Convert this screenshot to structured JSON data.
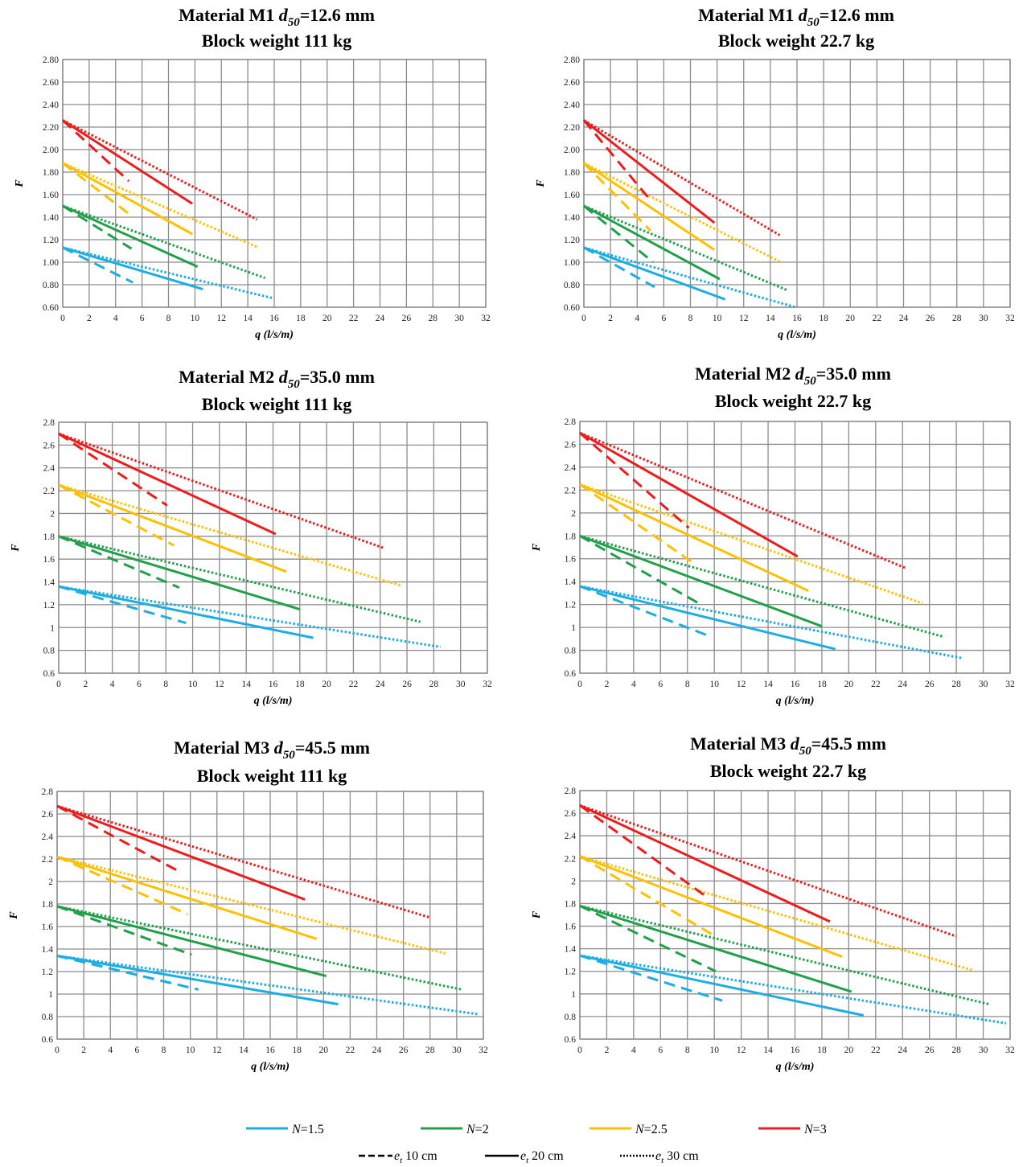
{
  "figure": {
    "legend_series": [
      {
        "label_var": "N",
        "label_val": "=1.5",
        "color": "#1CADE4"
      },
      {
        "label_var": "N",
        "label_val": "=2",
        "color": "#21A04A"
      },
      {
        "label_var": "N",
        "label_val": "=2.5",
        "color": "#FFC000"
      },
      {
        "label_var": "N",
        "label_val": "=3",
        "color": "#EE1C1C"
      }
    ],
    "legend_styles": [
      {
        "label_var": "e",
        "label_sub": "t",
        "label_val": " 10 cm",
        "dash": "dashed"
      },
      {
        "label_var": "e",
        "label_sub": "t",
        "label_val": " 20 cm",
        "dash": "solid"
      },
      {
        "label_var": "e",
        "label_sub": "t",
        "label_val": " 30 cm",
        "dash": "dotted"
      }
    ]
  },
  "chart_data": [
    {
      "type": "line",
      "title_line1": [
        "Material M1 ",
        "d",
        "50",
        "=12.6 mm"
      ],
      "title_line2": "Block weight  111 kg",
      "xlabel": "q (l/s/m)",
      "ylabel": "F",
      "xlim": [
        0,
        32
      ],
      "ylim": [
        0.6,
        2.8
      ],
      "y_decimals": 2,
      "x_ticks": [
        "0",
        "2",
        "4",
        "6",
        "8",
        "10",
        "12",
        "14",
        "16",
        "18",
        "20",
        "22",
        "24",
        "26",
        "28",
        "30",
        "32"
      ],
      "y_ticks": [
        "0.60",
        "0.80",
        "1.00",
        "1.20",
        "1.40",
        "1.60",
        "1.80",
        "2.00",
        "2.20",
        "2.40",
        "2.60",
        "2.80"
      ],
      "grid": true,
      "series": [
        {
          "N": 1.5,
          "e_t": 10,
          "x": [
            0,
            5.3
          ],
          "y": [
            1.13,
            0.82
          ]
        },
        {
          "N": 1.5,
          "e_t": 20,
          "x": [
            0,
            10.6
          ],
          "y": [
            1.13,
            0.76
          ]
        },
        {
          "N": 1.5,
          "e_t": 30,
          "x": [
            0,
            15.9
          ],
          "y": [
            1.13,
            0.68
          ]
        },
        {
          "N": 2,
          "e_t": 10,
          "x": [
            0,
            5.2
          ],
          "y": [
            1.5,
            1.12
          ]
        },
        {
          "N": 2,
          "e_t": 20,
          "x": [
            0,
            10.2
          ],
          "y": [
            1.5,
            0.96
          ]
        },
        {
          "N": 2,
          "e_t": 30,
          "x": [
            0,
            15.3
          ],
          "y": [
            1.5,
            0.86
          ]
        },
        {
          "N": 2.5,
          "e_t": 10,
          "x": [
            0,
            5.0
          ],
          "y": [
            1.88,
            1.43
          ]
        },
        {
          "N": 2.5,
          "e_t": 20,
          "x": [
            0,
            9.8
          ],
          "y": [
            1.88,
            1.25
          ]
        },
        {
          "N": 2.5,
          "e_t": 30,
          "x": [
            0,
            14.8
          ],
          "y": [
            1.88,
            1.13
          ]
        },
        {
          "N": 3,
          "e_t": 10,
          "x": [
            0,
            5.0
          ],
          "y": [
            2.26,
            1.72
          ]
        },
        {
          "N": 3,
          "e_t": 20,
          "x": [
            0,
            9.8
          ],
          "y": [
            2.26,
            1.52
          ]
        },
        {
          "N": 3,
          "e_t": 30,
          "x": [
            0,
            14.7
          ],
          "y": [
            2.26,
            1.38
          ]
        }
      ]
    },
    {
      "type": "line",
      "title_line1": [
        "Material M1 ",
        "d",
        "50",
        "=12.6 mm"
      ],
      "title_line2": "Block weight  22.7 kg",
      "xlabel": "q (l/s/m)",
      "ylabel": "F",
      "xlim": [
        0,
        32
      ],
      "ylim": [
        0.6,
        2.8
      ],
      "y_decimals": 2,
      "x_ticks": [
        "0",
        "2",
        "4",
        "6",
        "8",
        "10",
        "12",
        "14",
        "16",
        "18",
        "20",
        "22",
        "24",
        "26",
        "28",
        "30",
        "32"
      ],
      "y_ticks": [
        "0.60",
        "0.80",
        "1.00",
        "1.20",
        "1.40",
        "1.60",
        "1.80",
        "2.00",
        "2.20",
        "2.40",
        "2.60",
        "2.80"
      ],
      "grid": true,
      "series": [
        {
          "N": 1.5,
          "e_t": 10,
          "x": [
            0,
            5.3
          ],
          "y": [
            1.13,
            0.78
          ]
        },
        {
          "N": 1.5,
          "e_t": 20,
          "x": [
            0,
            10.6
          ],
          "y": [
            1.13,
            0.67
          ]
        },
        {
          "N": 1.5,
          "e_t": 30,
          "x": [
            0,
            15.9
          ],
          "y": [
            1.13,
            0.6
          ]
        },
        {
          "N": 2,
          "e_t": 10,
          "x": [
            0,
            5.2
          ],
          "y": [
            1.5,
            1.0
          ]
        },
        {
          "N": 2,
          "e_t": 20,
          "x": [
            0,
            10.2
          ],
          "y": [
            1.5,
            0.85
          ]
        },
        {
          "N": 2,
          "e_t": 30,
          "x": [
            0,
            15.3
          ],
          "y": [
            1.5,
            0.75
          ]
        },
        {
          "N": 2.5,
          "e_t": 10,
          "x": [
            0,
            5.0
          ],
          "y": [
            1.88,
            1.28
          ]
        },
        {
          "N": 2.5,
          "e_t": 20,
          "x": [
            0,
            9.8
          ],
          "y": [
            1.88,
            1.11
          ]
        },
        {
          "N": 2.5,
          "e_t": 30,
          "x": [
            0,
            14.8
          ],
          "y": [
            1.88,
            1.0
          ]
        },
        {
          "N": 3,
          "e_t": 10,
          "x": [
            0,
            5.0
          ],
          "y": [
            2.26,
            1.55
          ]
        },
        {
          "N": 3,
          "e_t": 20,
          "x": [
            0,
            9.8
          ],
          "y": [
            2.26,
            1.35
          ]
        },
        {
          "N": 3,
          "e_t": 30,
          "x": [
            0,
            14.7
          ],
          "y": [
            2.26,
            1.24
          ]
        }
      ]
    },
    {
      "type": "line",
      "title_line1": [
        "Material M2 ",
        "d",
        "50",
        "=35.0 mm"
      ],
      "title_line2": "Block weight  111 kg",
      "xlabel": "q (l/s/m)",
      "ylabel": "F",
      "xlim": [
        0,
        32
      ],
      "ylim": [
        0.6,
        2.8
      ],
      "y_decimals": 1,
      "x_ticks": [
        "0",
        "2",
        "4",
        "6",
        "8",
        "10",
        "12",
        "14",
        "16",
        "18",
        "20",
        "22",
        "24",
        "26",
        "28",
        "30",
        "32"
      ],
      "y_ticks": [
        "0.6",
        "0.8",
        "1",
        "1.2",
        "1.4",
        "1.6",
        "1.8",
        "2",
        "2.2",
        "2.4",
        "2.6",
        "2.8"
      ],
      "grid": true,
      "series": [
        {
          "N": 1.5,
          "e_t": 10,
          "x": [
            0,
            9.5
          ],
          "y": [
            1.36,
            1.04
          ]
        },
        {
          "N": 1.5,
          "e_t": 20,
          "x": [
            0,
            19.0
          ],
          "y": [
            1.36,
            0.91
          ]
        },
        {
          "N": 1.5,
          "e_t": 30,
          "x": [
            0,
            28.5
          ],
          "y": [
            1.36,
            0.83
          ]
        },
        {
          "N": 2,
          "e_t": 10,
          "x": [
            0,
            9.0
          ],
          "y": [
            1.8,
            1.35
          ]
        },
        {
          "N": 2,
          "e_t": 20,
          "x": [
            0,
            18.0
          ],
          "y": [
            1.8,
            1.16
          ]
        },
        {
          "N": 2,
          "e_t": 30,
          "x": [
            0,
            27.0
          ],
          "y": [
            1.8,
            1.05
          ]
        },
        {
          "N": 2.5,
          "e_t": 10,
          "x": [
            0,
            8.6
          ],
          "y": [
            2.25,
            1.72
          ]
        },
        {
          "N": 2.5,
          "e_t": 20,
          "x": [
            0,
            17.0
          ],
          "y": [
            2.25,
            1.49
          ]
        },
        {
          "N": 2.5,
          "e_t": 30,
          "x": [
            0,
            25.5
          ],
          "y": [
            2.25,
            1.37
          ]
        },
        {
          "N": 3,
          "e_t": 10,
          "x": [
            0,
            8.1
          ],
          "y": [
            2.7,
            2.07
          ]
        },
        {
          "N": 3,
          "e_t": 20,
          "x": [
            0,
            16.2
          ],
          "y": [
            2.7,
            1.82
          ]
        },
        {
          "N": 3,
          "e_t": 30,
          "x": [
            0,
            24.2
          ],
          "y": [
            2.7,
            1.7
          ]
        }
      ]
    },
    {
      "type": "line",
      "title_line1": [
        "Material M2 ",
        "d",
        "50",
        "=35.0 mm"
      ],
      "title_line2": "Block weight  22.7 kg",
      "xlabel": "q (l/s/m)",
      "ylabel": "F",
      "xlim": [
        0,
        32
      ],
      "ylim": [
        0.6,
        2.8
      ],
      "y_decimals": 1,
      "x_ticks": [
        "0",
        "2",
        "4",
        "6",
        "8",
        "10",
        "12",
        "14",
        "16",
        "18",
        "20",
        "22",
        "24",
        "26",
        "28",
        "30",
        "32"
      ],
      "y_ticks": [
        "0.6",
        "0.8",
        "1",
        "1.2",
        "1.4",
        "1.6",
        "1.8",
        "2",
        "2.2",
        "2.4",
        "2.6",
        "2.8"
      ],
      "grid": true,
      "series": [
        {
          "N": 1.5,
          "e_t": 10,
          "x": [
            0,
            9.5
          ],
          "y": [
            1.36,
            0.93
          ]
        },
        {
          "N": 1.5,
          "e_t": 20,
          "x": [
            0,
            19.0
          ],
          "y": [
            1.36,
            0.81
          ]
        },
        {
          "N": 1.5,
          "e_t": 30,
          "x": [
            0,
            28.5
          ],
          "y": [
            1.36,
            0.73
          ]
        },
        {
          "N": 2,
          "e_t": 10,
          "x": [
            0,
            9.0
          ],
          "y": [
            1.8,
            1.2
          ]
        },
        {
          "N": 2,
          "e_t": 20,
          "x": [
            0,
            18.0
          ],
          "y": [
            1.8,
            1.01
          ]
        },
        {
          "N": 2,
          "e_t": 30,
          "x": [
            0,
            27.0
          ],
          "y": [
            1.8,
            0.92
          ]
        },
        {
          "N": 2.5,
          "e_t": 10,
          "x": [
            0,
            8.6
          ],
          "y": [
            2.25,
            1.55
          ]
        },
        {
          "N": 2.5,
          "e_t": 20,
          "x": [
            0,
            17.0
          ],
          "y": [
            2.25,
            1.32
          ]
        },
        {
          "N": 2.5,
          "e_t": 30,
          "x": [
            0,
            25.5
          ],
          "y": [
            2.25,
            1.21
          ]
        },
        {
          "N": 3,
          "e_t": 10,
          "x": [
            0,
            8.1
          ],
          "y": [
            2.7,
            1.87
          ]
        },
        {
          "N": 3,
          "e_t": 20,
          "x": [
            0,
            16.2
          ],
          "y": [
            2.7,
            1.62
          ]
        },
        {
          "N": 3,
          "e_t": 30,
          "x": [
            0,
            24.2
          ],
          "y": [
            2.7,
            1.52
          ]
        }
      ]
    },
    {
      "type": "line",
      "title_line1": [
        "Material M3 ",
        "d",
        "50",
        "=45.5 mm"
      ],
      "title_line2": "Block weight  111 kg",
      "xlabel": "q (l/s/m)",
      "ylabel": "F",
      "xlim": [
        0,
        32
      ],
      "ylim": [
        0.6,
        2.8
      ],
      "y_decimals": 1,
      "x_ticks": [
        "0",
        "2",
        "4",
        "6",
        "8",
        "10",
        "12",
        "14",
        "16",
        "18",
        "20",
        "22",
        "24",
        "26",
        "28",
        "30",
        "32"
      ],
      "y_ticks": [
        "0.6",
        "0.8",
        "1",
        "1.2",
        "1.4",
        "1.6",
        "1.8",
        "2",
        "2.2",
        "2.4",
        "2.6",
        "2.8"
      ],
      "grid": true,
      "series": [
        {
          "N": 1.5,
          "e_t": 10,
          "x": [
            0,
            10.6
          ],
          "y": [
            1.34,
            1.04
          ]
        },
        {
          "N": 1.5,
          "e_t": 20,
          "x": [
            0,
            21.1
          ],
          "y": [
            1.34,
            0.91
          ]
        },
        {
          "N": 1.5,
          "e_t": 30,
          "x": [
            0,
            31.7
          ],
          "y": [
            1.34,
            0.82
          ]
        },
        {
          "N": 2,
          "e_t": 10,
          "x": [
            0,
            10.1
          ],
          "y": [
            1.78,
            1.35
          ]
        },
        {
          "N": 2,
          "e_t": 20,
          "x": [
            0,
            20.2
          ],
          "y": [
            1.78,
            1.16
          ]
        },
        {
          "N": 2,
          "e_t": 30,
          "x": [
            0,
            30.4
          ],
          "y": [
            1.78,
            1.04
          ]
        },
        {
          "N": 2.5,
          "e_t": 10,
          "x": [
            0,
            9.8
          ],
          "y": [
            2.22,
            1.71
          ]
        },
        {
          "N": 2.5,
          "e_t": 20,
          "x": [
            0,
            19.5
          ],
          "y": [
            2.22,
            1.49
          ]
        },
        {
          "N": 2.5,
          "e_t": 30,
          "x": [
            0,
            29.2
          ],
          "y": [
            2.22,
            1.36
          ]
        },
        {
          "N": 3,
          "e_t": 10,
          "x": [
            0,
            9.3
          ],
          "y": [
            2.67,
            2.08
          ]
        },
        {
          "N": 3,
          "e_t": 20,
          "x": [
            0,
            18.6
          ],
          "y": [
            2.67,
            1.84
          ]
        },
        {
          "N": 3,
          "e_t": 30,
          "x": [
            0,
            28.0
          ],
          "y": [
            2.67,
            1.68
          ]
        }
      ]
    },
    {
      "type": "line",
      "title_line1": [
        "Material M3 ",
        "d",
        "50",
        "=45.5 mm"
      ],
      "title_line2": "Block weight  22.7 kg",
      "xlabel": "q (l/s/m)",
      "ylabel": "F",
      "xlim": [
        0,
        32
      ],
      "ylim": [
        0.6,
        2.8
      ],
      "y_decimals": 1,
      "x_ticks": [
        "0",
        "2",
        "4",
        "6",
        "8",
        "10",
        "12",
        "14",
        "16",
        "18",
        "20",
        "22",
        "24",
        "26",
        "28",
        "30",
        "32"
      ],
      "y_ticks": [
        "0.6",
        "0.8",
        "1",
        "1.2",
        "1.4",
        "1.6",
        "1.8",
        "2",
        "2.2",
        "2.4",
        "2.6",
        "2.8"
      ],
      "grid": true,
      "series": [
        {
          "N": 1.5,
          "e_t": 10,
          "x": [
            0,
            10.6
          ],
          "y": [
            1.34,
            0.94
          ]
        },
        {
          "N": 1.5,
          "e_t": 20,
          "x": [
            0,
            21.1
          ],
          "y": [
            1.34,
            0.81
          ]
        },
        {
          "N": 1.5,
          "e_t": 30,
          "x": [
            0,
            31.7
          ],
          "y": [
            1.34,
            0.74
          ]
        },
        {
          "N": 2,
          "e_t": 10,
          "x": [
            0,
            10.1
          ],
          "y": [
            1.78,
            1.2
          ]
        },
        {
          "N": 2,
          "e_t": 20,
          "x": [
            0,
            20.2
          ],
          "y": [
            1.78,
            1.02
          ]
        },
        {
          "N": 2,
          "e_t": 30,
          "x": [
            0,
            30.4
          ],
          "y": [
            1.78,
            0.91
          ]
        },
        {
          "N": 2.5,
          "e_t": 10,
          "x": [
            0,
            9.8
          ],
          "y": [
            2.22,
            1.53
          ]
        },
        {
          "N": 2.5,
          "e_t": 20,
          "x": [
            0,
            19.5
          ],
          "y": [
            2.22,
            1.33
          ]
        },
        {
          "N": 2.5,
          "e_t": 30,
          "x": [
            0,
            29.2
          ],
          "y": [
            2.22,
            1.21
          ]
        },
        {
          "N": 3,
          "e_t": 10,
          "x": [
            0,
            9.3
          ],
          "y": [
            2.67,
            1.87
          ]
        },
        {
          "N": 3,
          "e_t": 20,
          "x": [
            0,
            18.6
          ],
          "y": [
            2.67,
            1.64
          ]
        },
        {
          "N": 3,
          "e_t": 30,
          "x": [
            0,
            28.0
          ],
          "y": [
            2.67,
            1.51
          ]
        }
      ]
    }
  ]
}
